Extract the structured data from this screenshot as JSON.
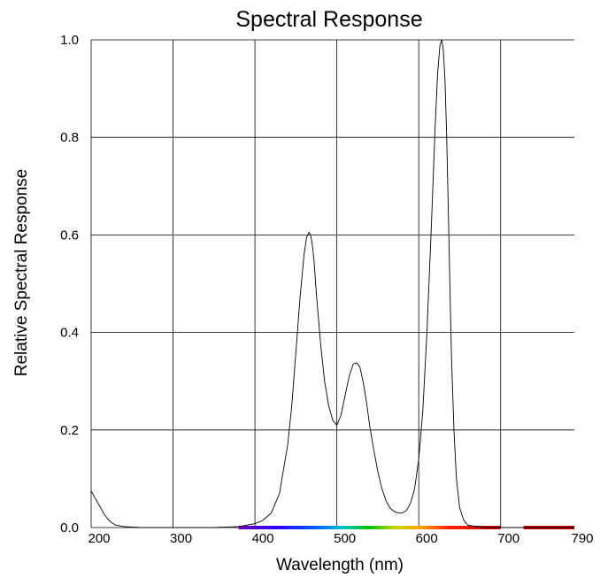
{
  "chart_data": {
    "type": "line",
    "title": "Spectral Response",
    "xlabel": "Wavelength (nm)",
    "ylabel": "Relative Spectral Response",
    "xlim": [
      200,
      790
    ],
    "ylim": [
      0.0,
      1.0
    ],
    "x_ticks": [
      200,
      300,
      400,
      500,
      600,
      700,
      790
    ],
    "y_ticks": [
      "0.0",
      "0.2",
      "0.4",
      "0.6",
      "0.8",
      "1.0"
    ],
    "grid": true,
    "legend": "none",
    "spectrum_bar": true,
    "series": [
      {
        "x": [
          200,
          205,
          210,
          215,
          220,
          225,
          230,
          240,
          260,
          300,
          350,
          380,
          400,
          410,
          420,
          430,
          440,
          445,
          450,
          455,
          460,
          463,
          466,
          468,
          470,
          472,
          475,
          480,
          485,
          490,
          495,
          500,
          505,
          510,
          515,
          520,
          524,
          528,
          532,
          536,
          540,
          545,
          550,
          555,
          560,
          565,
          570,
          575,
          580,
          585,
          590,
          595,
          600,
          605,
          610,
          615,
          620,
          623,
          626,
          628,
          630,
          632,
          634,
          636,
          638,
          640,
          643,
          646,
          650,
          655,
          660,
          670,
          680,
          700,
          790
        ],
        "y": [
          0.075,
          0.06,
          0.045,
          0.03,
          0.018,
          0.01,
          0.005,
          0.002,
          0.0,
          0.0,
          0.0,
          0.002,
          0.008,
          0.015,
          0.03,
          0.07,
          0.17,
          0.25,
          0.36,
          0.47,
          0.56,
          0.595,
          0.605,
          0.6,
          0.58,
          0.55,
          0.48,
          0.38,
          0.3,
          0.25,
          0.22,
          0.21,
          0.23,
          0.27,
          0.31,
          0.335,
          0.338,
          0.33,
          0.3,
          0.26,
          0.21,
          0.16,
          0.115,
          0.08,
          0.055,
          0.04,
          0.033,
          0.03,
          0.03,
          0.035,
          0.05,
          0.08,
          0.14,
          0.24,
          0.4,
          0.6,
          0.82,
          0.93,
          0.99,
          1.0,
          0.98,
          0.92,
          0.81,
          0.66,
          0.5,
          0.35,
          0.2,
          0.1,
          0.04,
          0.015,
          0.005,
          0.002,
          0.0,
          0.0,
          0.0
        ]
      }
    ]
  }
}
